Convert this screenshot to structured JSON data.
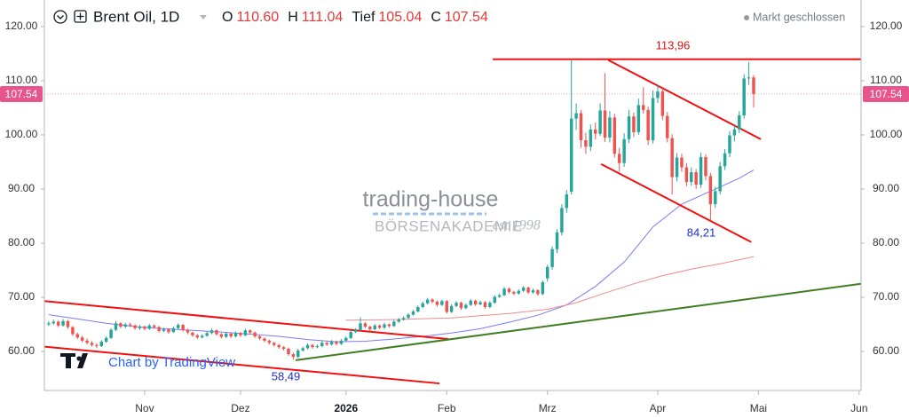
{
  "chart_data": {
    "type": "candlestick",
    "title": "Brent Oil, 1D",
    "ohlc_legend": [
      {
        "label": "O",
        "value": "110.60"
      },
      {
        "label": "H",
        "value": "111.04"
      },
      {
        "label": "Tief",
        "value": "105.04"
      },
      {
        "label": "C",
        "value": "107.54"
      }
    ],
    "status": "Markt geschlossen",
    "watermark": {
      "name": "trading-house",
      "subtitle": "BÖRSENAKADEMIE",
      "est": "est 1998"
    },
    "credit": "Chart by TradingView",
    "up_color": "#26a69a",
    "down_color": "#ef5350",
    "last_color": "#e8558b",
    "xlim": [
      -0.9,
      169.4
    ],
    "ylim": [
      52.8,
      124.9
    ],
    "xticks": [
      {
        "value": 20,
        "label": "Nov"
      },
      {
        "value": 40,
        "label": "Dez"
      },
      {
        "value": 62,
        "label": "2026"
      },
      {
        "value": 83,
        "label": "Feb"
      },
      {
        "value": 104,
        "label": "Mrz"
      },
      {
        "value": 127,
        "label": "Apr"
      },
      {
        "value": 148,
        "label": "Mai"
      },
      {
        "value": 169,
        "label": "Jun"
      }
    ],
    "yticks": [
      {
        "value": 60,
        "label": "60.00"
      },
      {
        "value": 70,
        "label": "70.00"
      },
      {
        "value": 80,
        "label": "80.00"
      },
      {
        "value": 90,
        "label": "90.00"
      },
      {
        "value": 100,
        "label": "100.00"
      },
      {
        "value": 110,
        "label": "110.00"
      },
      {
        "value": 120,
        "label": "120.00"
      }
    ],
    "grid": false,
    "ohlc": [
      [
        65.0,
        65.6,
        64.7,
        65.2
      ],
      [
        65.2,
        65.9,
        64.9,
        65.5
      ],
      [
        65.5,
        65.7,
        64.5,
        64.8
      ],
      [
        64.8,
        66.0,
        64.6,
        65.6
      ],
      [
        65.6,
        65.8,
        64.2,
        64.5
      ],
      [
        64.5,
        64.7,
        62.9,
        63.2
      ],
      [
        63.2,
        63.5,
        62.3,
        62.6
      ],
      [
        62.6,
        62.9,
        61.7,
        62.0
      ],
      [
        62.0,
        62.4,
        61.3,
        61.6
      ],
      [
        61.6,
        61.9,
        60.9,
        61.2
      ],
      [
        61.2,
        61.5,
        60.6,
        61.0
      ],
      [
        61.0,
        62.1,
        60.8,
        61.8
      ],
      [
        61.8,
        62.8,
        61.6,
        62.5
      ],
      [
        62.5,
        64.3,
        62.3,
        64.0
      ],
      [
        64.0,
        65.6,
        63.8,
        65.2
      ],
      [
        65.2,
        65.4,
        64.3,
        64.6
      ],
      [
        64.6,
        65.3,
        64.3,
        65.0
      ],
      [
        65.0,
        65.3,
        64.5,
        64.8
      ],
      [
        64.8,
        65.0,
        64.0,
        64.3
      ],
      [
        64.3,
        64.9,
        64.0,
        64.6
      ],
      [
        64.6,
        64.8,
        63.9,
        64.2
      ],
      [
        64.2,
        65.1,
        64.0,
        64.8
      ],
      [
        64.8,
        65.0,
        64.2,
        64.5
      ],
      [
        64.5,
        64.7,
        63.5,
        63.8
      ],
      [
        63.8,
        64.4,
        63.6,
        64.1
      ],
      [
        64.1,
        64.3,
        63.3,
        63.6
      ],
      [
        63.6,
        64.6,
        63.4,
        64.3
      ],
      [
        64.3,
        65.2,
        64.1,
        64.9
      ],
      [
        64.9,
        65.1,
        63.7,
        64.0
      ],
      [
        64.0,
        64.2,
        63.2,
        63.5
      ],
      [
        63.5,
        63.7,
        62.7,
        63.0
      ],
      [
        63.0,
        63.2,
        62.3,
        62.6
      ],
      [
        62.6,
        63.2,
        62.4,
        62.9
      ],
      [
        62.9,
        63.7,
        62.7,
        63.4
      ],
      [
        63.4,
        64.2,
        63.2,
        63.9
      ],
      [
        63.9,
        64.1,
        62.9,
        63.2
      ],
      [
        63.2,
        63.4,
        62.4,
        62.7
      ],
      [
        62.7,
        63.6,
        62.5,
        63.3
      ],
      [
        63.3,
        63.5,
        62.5,
        62.8
      ],
      [
        62.8,
        63.7,
        62.6,
        63.4
      ],
      [
        63.4,
        63.6,
        62.7,
        63.0
      ],
      [
        63.0,
        64.2,
        62.8,
        63.9
      ],
      [
        63.9,
        64.1,
        63.2,
        63.5
      ],
      [
        63.5,
        63.7,
        62.5,
        62.8
      ],
      [
        62.8,
        63.0,
        62.1,
        62.4
      ],
      [
        62.4,
        62.6,
        61.7,
        62.0
      ],
      [
        62.0,
        62.2,
        61.3,
        61.6
      ],
      [
        61.6,
        61.8,
        60.9,
        61.2
      ],
      [
        61.2,
        61.4,
        60.5,
        60.8
      ],
      [
        60.8,
        61.0,
        60.2,
        60.5
      ],
      [
        60.5,
        60.7,
        59.2,
        59.5
      ],
      [
        59.5,
        59.8,
        58.49,
        59.0
      ],
      [
        59.0,
        60.5,
        58.8,
        60.2
      ],
      [
        60.2,
        60.9,
        60.0,
        60.6
      ],
      [
        60.6,
        61.5,
        60.4,
        61.2
      ],
      [
        61.2,
        61.4,
        60.5,
        60.8
      ],
      [
        60.8,
        61.3,
        60.6,
        61.0
      ],
      [
        61.0,
        61.9,
        60.8,
        61.6
      ],
      [
        61.6,
        61.8,
        61.0,
        61.3
      ],
      [
        61.3,
        62.1,
        61.1,
        61.8
      ],
      [
        61.8,
        62.0,
        61.1,
        61.4
      ],
      [
        61.4,
        62.3,
        61.2,
        62.0
      ],
      [
        62.0,
        62.8,
        61.8,
        62.5
      ],
      [
        62.5,
        63.9,
        62.3,
        63.6
      ],
      [
        63.6,
        64.3,
        63.4,
        64.0
      ],
      [
        64.0,
        66.3,
        63.8,
        65.2
      ],
      [
        65.2,
        65.4,
        64.3,
        64.6
      ],
      [
        64.6,
        64.8,
        63.8,
        64.1
      ],
      [
        64.1,
        65.1,
        63.9,
        64.8
      ],
      [
        64.8,
        65.0,
        64.1,
        64.4
      ],
      [
        64.4,
        65.3,
        64.2,
        65.0
      ],
      [
        65.0,
        65.2,
        64.4,
        64.7
      ],
      [
        64.7,
        65.8,
        64.5,
        65.5
      ],
      [
        65.5,
        66.2,
        65.3,
        65.9
      ],
      [
        65.9,
        66.5,
        65.7,
        66.2
      ],
      [
        66.2,
        67.1,
        66.0,
        66.8
      ],
      [
        66.8,
        67.7,
        66.6,
        67.4
      ],
      [
        67.4,
        68.5,
        67.2,
        68.2
      ],
      [
        68.2,
        69.2,
        68.0,
        68.9
      ],
      [
        68.9,
        69.9,
        68.7,
        69.6
      ],
      [
        69.6,
        69.8,
        68.9,
        69.2
      ],
      [
        69.2,
        69.4,
        68.3,
        68.6
      ],
      [
        68.6,
        69.6,
        68.4,
        69.3
      ],
      [
        69.3,
        69.5,
        67.0,
        67.3
      ],
      [
        67.3,
        68.7,
        67.1,
        68.4
      ],
      [
        68.4,
        69.3,
        68.2,
        69.0
      ],
      [
        69.0,
        69.2,
        67.7,
        68.0
      ],
      [
        68.0,
        68.9,
        67.8,
        68.6
      ],
      [
        68.6,
        69.7,
        68.4,
        69.4
      ],
      [
        69.4,
        69.6,
        68.4,
        68.7
      ],
      [
        68.7,
        69.4,
        68.5,
        69.1
      ],
      [
        69.1,
        69.3,
        67.9,
        68.2
      ],
      [
        68.2,
        69.3,
        68.0,
        69.0
      ],
      [
        69.0,
        70.4,
        68.8,
        70.1
      ],
      [
        70.1,
        70.7,
        69.9,
        70.4
      ],
      [
        70.4,
        71.9,
        70.2,
        71.6
      ],
      [
        71.6,
        71.8,
        70.7,
        71.0
      ],
      [
        71.0,
        71.2,
        70.4,
        70.7
      ],
      [
        70.7,
        71.5,
        70.5,
        71.2
      ],
      [
        71.2,
        72.1,
        71.0,
        71.8
      ],
      [
        71.8,
        72.0,
        70.6,
        70.9
      ],
      [
        70.9,
        71.6,
        70.7,
        71.3
      ],
      [
        71.3,
        71.5,
        70.3,
        70.6
      ],
      [
        70.6,
        73.1,
        70.4,
        72.8
      ],
      [
        73.5,
        76.0,
        72.9,
        75.6
      ],
      [
        75.6,
        79.4,
        75.1,
        78.9
      ],
      [
        78.9,
        82.6,
        78.2,
        82.0
      ],
      [
        82.0,
        87.2,
        81.4,
        86.5
      ],
      [
        86.5,
        89.8,
        85.6,
        89.0
      ],
      [
        89.5,
        113.96,
        89.0,
        103.0
      ],
      [
        103.0,
        105.8,
        100.9,
        104.0
      ],
      [
        104.0,
        104.6,
        97.6,
        99.0
      ],
      [
        99.0,
        100.4,
        96.5,
        97.8
      ],
      [
        97.8,
        101.9,
        97.0,
        101.0
      ],
      [
        101.0,
        102.3,
        99.1,
        100.2
      ],
      [
        100.2,
        105.8,
        99.8,
        104.5
      ],
      [
        104.5,
        111.4,
        98.7,
        99.5
      ],
      [
        99.5,
        104.4,
        98.6,
        103.2
      ],
      [
        103.2,
        103.9,
        95.8,
        96.5
      ],
      [
        96.5,
        97.6,
        93.2,
        94.8
      ],
      [
        94.8,
        100.3,
        94.1,
        99.2
      ],
      [
        99.2,
        104.6,
        98.5,
        103.4
      ],
      [
        103.4,
        104.1,
        99.6,
        100.5
      ],
      [
        100.5,
        106.7,
        100.0,
        105.5
      ],
      [
        105.5,
        108.8,
        103.9,
        104.6
      ],
      [
        104.6,
        105.2,
        98.1,
        99.0
      ],
      [
        99.0,
        108.2,
        98.4,
        106.8
      ],
      [
        106.8,
        109.3,
        105.9,
        108.0
      ],
      [
        108.0,
        108.6,
        102.7,
        103.5
      ],
      [
        103.5,
        104.2,
        98.6,
        99.4
      ],
      [
        99.4,
        100.1,
        89.0,
        92.2
      ],
      [
        92.2,
        96.6,
        91.4,
        95.8
      ],
      [
        95.8,
        96.5,
        93.2,
        94.0
      ],
      [
        94.0,
        94.8,
        90.5,
        91.3
      ],
      [
        91.3,
        94.0,
        90.6,
        93.1
      ],
      [
        93.1,
        93.7,
        90.0,
        90.8
      ],
      [
        90.8,
        96.7,
        90.2,
        95.9
      ],
      [
        95.9,
        96.4,
        91.6,
        92.4
      ],
      [
        92.4,
        93.0,
        84.21,
        87.2
      ],
      [
        87.2,
        90.4,
        86.5,
        89.6
      ],
      [
        89.6,
        95.0,
        89.0,
        94.2
      ],
      [
        94.2,
        97.4,
        93.5,
        96.6
      ],
      [
        96.6,
        100.7,
        95.9,
        99.9
      ],
      [
        99.9,
        101.8,
        98.8,
        101.0
      ],
      [
        101.0,
        104.4,
        100.3,
        103.6
      ],
      [
        103.6,
        111.2,
        103.0,
        110.4
      ],
      [
        110.4,
        113.5,
        109.2,
        110.6
      ],
      [
        110.6,
        111.04,
        105.04,
        107.54
      ]
    ],
    "moving_averages": [
      {
        "color": "#7a7cf2",
        "x": [
          0,
          6,
          12,
          18,
          24,
          30,
          36,
          42,
          48,
          54,
          60,
          66,
          72,
          78,
          84,
          90,
          96,
          102,
          108,
          114,
          120,
          126,
          132,
          138,
          144,
          147
        ],
        "values": [
          66.8,
          66.0,
          65.2,
          64.6,
          64.2,
          63.9,
          63.6,
          63.2,
          62.8,
          62.2,
          61.8,
          61.9,
          62.3,
          62.8,
          63.4,
          64.2,
          65.4,
          66.7,
          68.6,
          72.0,
          76.5,
          83.0,
          87.2,
          89.6,
          92.0,
          93.5
        ]
      },
      {
        "color": "#f08a8a",
        "x": [
          62,
          72,
          84,
          96,
          104,
          110,
          116,
          122,
          128,
          134,
          140,
          147
        ],
        "values": [
          65.8,
          65.9,
          66.2,
          67.0,
          67.8,
          69.0,
          70.8,
          72.5,
          74.0,
          75.2,
          76.2,
          77.5
        ]
      }
    ],
    "lines": [
      {
        "color": "#f01010",
        "points": [
          [
            92.6,
            113.96
          ],
          [
            169.4,
            113.96
          ]
        ]
      },
      {
        "color": "#f01010",
        "points": [
          [
            116.7,
            113.8
          ],
          [
            148.5,
            99.2
          ]
        ]
      },
      {
        "color": "#f01010",
        "points": [
          [
            115.2,
            94.6
          ],
          [
            146.5,
            80.2
          ]
        ]
      },
      {
        "color": "#f01010",
        "points": [
          [
            -0.9,
            69.3
          ],
          [
            83.3,
            62.3
          ]
        ]
      },
      {
        "color": "#f01010",
        "points": [
          [
            -0.9,
            60.9
          ],
          [
            81.5,
            54.1
          ]
        ]
      },
      {
        "color": "#3f7d20",
        "points": [
          [
            51.5,
            58.4
          ],
          [
            169.4,
            72.5
          ]
        ]
      }
    ],
    "annotations": [
      {
        "text": "113,96",
        "color": "#e01010"
      },
      {
        "text": "84,21",
        "color": "#1f2fd0"
      },
      {
        "text": "58,49",
        "color": "#1f2fd0"
      }
    ]
  }
}
